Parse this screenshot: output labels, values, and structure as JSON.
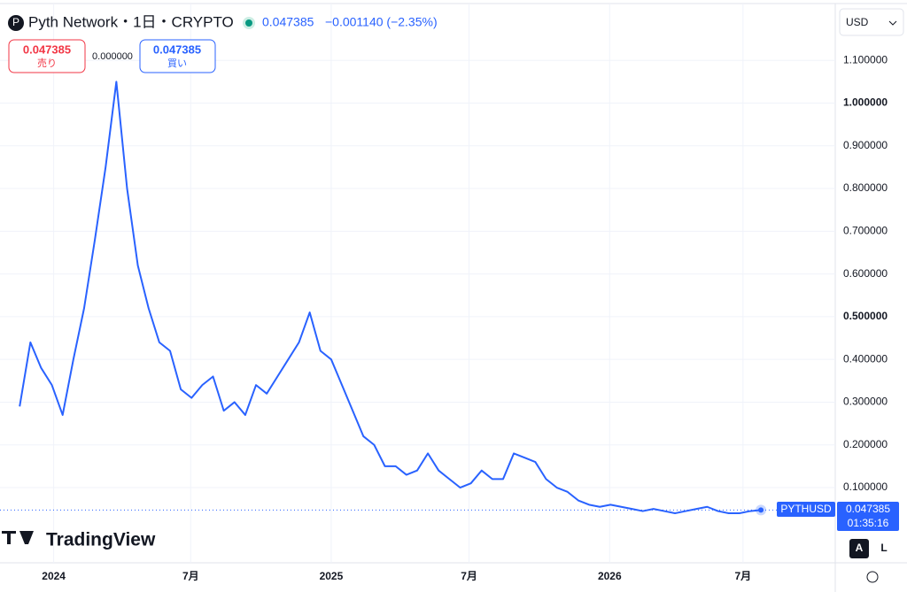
{
  "header": {
    "symbol": "Pyth Network・1日・CRYPTO",
    "price": "0.047385",
    "change": "−0.001140 (−2.35%)",
    "sell_price": "0.047385",
    "sell_label": "売り",
    "spread": "0.000000",
    "buy_price": "0.047385",
    "buy_label": "買い",
    "currency": "USD"
  },
  "price_tag": {
    "ticker": "PYTHUSD",
    "price": "0.047385",
    "countdown": "01:35:16"
  },
  "brand": "TradingView",
  "buttons": [
    "A",
    "L"
  ],
  "chart_data": {
    "type": "line",
    "series": [
      {
        "name": "PYTHUSD",
        "color": "#2962ff",
        "values": [
          0.29,
          0.44,
          0.38,
          0.34,
          0.27,
          0.4,
          0.52,
          0.68,
          0.85,
          1.05,
          0.8,
          0.62,
          0.52,
          0.44,
          0.42,
          0.33,
          0.31,
          0.34,
          0.36,
          0.28,
          0.3,
          0.27,
          0.34,
          0.32,
          0.36,
          0.4,
          0.44,
          0.51,
          0.42,
          0.4,
          0.34,
          0.28,
          0.22,
          0.2,
          0.15,
          0.15,
          0.13,
          0.14,
          0.18,
          0.14,
          0.12,
          0.1,
          0.11,
          0.14,
          0.12,
          0.12,
          0.18,
          0.17,
          0.16,
          0.12,
          0.1,
          0.09,
          0.07,
          0.06,
          0.055,
          0.06,
          0.055,
          0.05,
          0.045,
          0.05,
          0.045,
          0.04,
          0.045,
          0.05,
          0.055,
          0.045,
          0.04,
          0.04,
          0.045,
          0.047385
        ]
      }
    ],
    "last_value": 0.047385,
    "xlim": [
      -1.83,
      75.92
    ],
    "xticks": [
      {
        "value": 3.17,
        "label": "2024"
      },
      {
        "value": 15.92,
        "label": "7月"
      },
      {
        "value": 29,
        "label": "2025"
      },
      {
        "value": 41.83,
        "label": "7月"
      },
      {
        "value": 54.92,
        "label": "2026"
      },
      {
        "value": 67.33,
        "label": "7月"
      }
    ],
    "ylim": [
      -0.076,
      1.233
    ],
    "yticks": [
      {
        "value": 0.1,
        "label": "0.100000"
      },
      {
        "value": 0.2,
        "label": "0.200000"
      },
      {
        "value": 0.3,
        "label": "0.300000"
      },
      {
        "value": 0.4,
        "label": "0.400000"
      },
      {
        "value": 0.5,
        "label": "0.500000"
      },
      {
        "value": 0.6,
        "label": "0.600000"
      },
      {
        "value": 0.7,
        "label": "0.700000"
      },
      {
        "value": 0.8,
        "label": "0.800000"
      },
      {
        "value": 0.9,
        "label": "0.900000"
      },
      {
        "value": 1.0,
        "label": "1.000000"
      },
      {
        "value": 1.1,
        "label": "1.100000"
      }
    ],
    "grid": true
  }
}
